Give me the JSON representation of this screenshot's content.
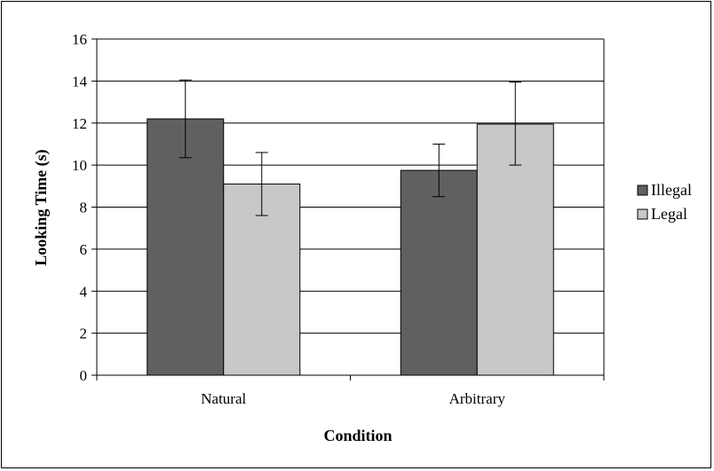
{
  "chart_data": {
    "type": "bar",
    "title": "",
    "xlabel": "Condition",
    "ylabel": "Looking Time (s)",
    "categories": [
      "Natural",
      "Arbitrary"
    ],
    "ylim": [
      0,
      16
    ],
    "yticks": [
      "0",
      "2",
      "4",
      "6",
      "8",
      "10",
      "12",
      "14",
      "16"
    ],
    "grid": true,
    "legend_position": "right",
    "series": [
      {
        "name": "Illegal",
        "color": "#606060",
        "values": [
          12.2,
          9.75
        ],
        "error_low": [
          10.35,
          8.5
        ],
        "error_high": [
          14.05,
          11.0
        ]
      },
      {
        "name": "Legal",
        "color": "#c8c8c8",
        "values": [
          9.1,
          11.95
        ],
        "error_low": [
          7.6,
          10.0
        ],
        "error_high": [
          10.6,
          13.95
        ]
      }
    ]
  }
}
